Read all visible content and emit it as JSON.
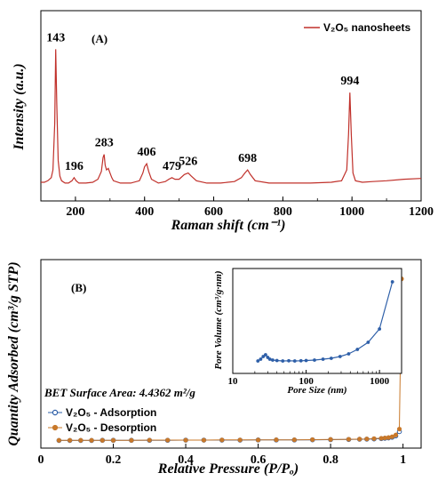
{
  "chart_data": [
    {
      "type": "line",
      "panel_label": "(A)",
      "xlabel": "Raman shift (cm⁻¹)",
      "ylabel": "Intensity (a.u.)",
      "xlim": [
        100,
        1200
      ],
      "xticks": [
        "200",
        "400",
        "600",
        "800",
        "1000",
        "1200"
      ],
      "grid": false,
      "legend_position": "top-right",
      "series": [
        {
          "name": "V₂O₅ nanosheets",
          "color": "#c0302a",
          "x": [
            100,
            110,
            120,
            130,
            135,
            140,
            143,
            146,
            150,
            155,
            160,
            170,
            180,
            190,
            196,
            202,
            210,
            230,
            250,
            265,
            275,
            280,
            283,
            286,
            290,
            295,
            300,
            305,
            310,
            330,
            360,
            385,
            395,
            400,
            406,
            412,
            420,
            440,
            460,
            470,
            479,
            488,
            500,
            515,
            526,
            535,
            550,
            580,
            620,
            660,
            680,
            690,
            698,
            706,
            720,
            760,
            820,
            880,
            940,
            970,
            985,
            990,
            994,
            998,
            1003,
            1010,
            1030,
            1060,
            1100,
            1150,
            1200
          ],
          "values": [
            0.04,
            0.04,
            0.05,
            0.07,
            0.12,
            0.42,
            0.9,
            0.55,
            0.18,
            0.08,
            0.05,
            0.035,
            0.035,
            0.05,
            0.07,
            0.05,
            0.035,
            0.035,
            0.04,
            0.06,
            0.11,
            0.2,
            0.22,
            0.15,
            0.12,
            0.13,
            0.1,
            0.07,
            0.05,
            0.035,
            0.035,
            0.05,
            0.1,
            0.14,
            0.16,
            0.11,
            0.06,
            0.035,
            0.045,
            0.06,
            0.07,
            0.06,
            0.06,
            0.09,
            0.1,
            0.08,
            0.05,
            0.035,
            0.035,
            0.045,
            0.07,
            0.1,
            0.12,
            0.09,
            0.05,
            0.035,
            0.035,
            0.035,
            0.04,
            0.05,
            0.12,
            0.35,
            0.62,
            0.35,
            0.1,
            0.05,
            0.04,
            0.045,
            0.05,
            0.06,
            0.065
          ]
        }
      ],
      "annotations": [
        {
          "label": "143",
          "x": 143
        },
        {
          "label": "196",
          "x": 196
        },
        {
          "label": "283",
          "x": 283
        },
        {
          "label": "406",
          "x": 406
        },
        {
          "label": "479",
          "x": 479
        },
        {
          "label": "526",
          "x": 526
        },
        {
          "label": "698",
          "x": 698
        },
        {
          "label": "994",
          "x": 994
        }
      ]
    },
    {
      "type": "line",
      "panel_label": "(B)",
      "xlabel": "Relative Pressure (P/Pₒ)",
      "ylabel": "Quantity Adsorbed (cm³/g STP)",
      "xlim": [
        0,
        1.05
      ],
      "xticks": [
        "0",
        "0.2",
        "0.4",
        "0.6",
        "0.8",
        "1"
      ],
      "grid": false,
      "annotation_text": "BET Surface Area: 4.4362 m²/g",
      "legend_position": "bottom-left",
      "series": [
        {
          "name": "V₂O₅ - Adsorption",
          "color": "#2e5fa8",
          "marker": "circle",
          "x": [
            0.05,
            0.08,
            0.11,
            0.14,
            0.17,
            0.2,
            0.25,
            0.3,
            0.35,
            0.4,
            0.45,
            0.5,
            0.55,
            0.6,
            0.65,
            0.7,
            0.75,
            0.8,
            0.85,
            0.88,
            0.9,
            0.92,
            0.94,
            0.95,
            0.96,
            0.97,
            0.98,
            0.99
          ],
          "values": [
            0.003,
            0.003,
            0.003,
            0.003,
            0.004,
            0.004,
            0.004,
            0.004,
            0.004,
            0.005,
            0.005,
            0.005,
            0.005,
            0.006,
            0.006,
            0.006,
            0.007,
            0.008,
            0.009,
            0.01,
            0.011,
            0.012,
            0.014,
            0.016,
            0.018,
            0.022,
            0.03,
            0.055
          ]
        },
        {
          "name": "V₂O₅ - Desorption",
          "color": "#c8782a",
          "marker": "circle",
          "x": [
            0.996,
            0.99,
            0.98,
            0.97,
            0.96,
            0.95,
            0.94,
            0.92,
            0.9,
            0.88,
            0.85,
            0.8,
            0.75,
            0.7,
            0.65,
            0.6,
            0.55,
            0.5,
            0.45,
            0.4,
            0.35,
            0.3,
            0.25,
            0.2,
            0.17,
            0.14,
            0.11,
            0.08,
            0.05
          ],
          "values": [
            0.95,
            0.07,
            0.035,
            0.025,
            0.02,
            0.018,
            0.016,
            0.014,
            0.012,
            0.011,
            0.01,
            0.009,
            0.008,
            0.007,
            0.007,
            0.006,
            0.006,
            0.006,
            0.005,
            0.005,
            0.005,
            0.005,
            0.004,
            0.004,
            0.004,
            0.004,
            0.004,
            0.004,
            0.004
          ]
        }
      ]
    },
    {
      "type": "line",
      "inset": true,
      "xlabel": "Pore Size (nm)",
      "ylabel": "Pore Volume (cm³/g·nm)",
      "xscale": "log",
      "xlim": [
        10,
        2000
      ],
      "xticks": [
        "10",
        "100",
        "1000"
      ],
      "series": [
        {
          "name": "",
          "color": "#2e5fa8",
          "marker": "circle",
          "x": [
            22,
            24,
            26,
            28,
            30,
            32,
            35,
            40,
            48,
            58,
            70,
            85,
            100,
            130,
            170,
            220,
            290,
            380,
            500,
            700,
            1000,
            1500
          ],
          "values": [
            0.06,
            0.08,
            0.11,
            0.13,
            0.1,
            0.08,
            0.07,
            0.065,
            0.06,
            0.062,
            0.06,
            0.062,
            0.065,
            0.07,
            0.08,
            0.09,
            0.11,
            0.14,
            0.19,
            0.27,
            0.42,
            0.95
          ]
        }
      ]
    }
  ]
}
